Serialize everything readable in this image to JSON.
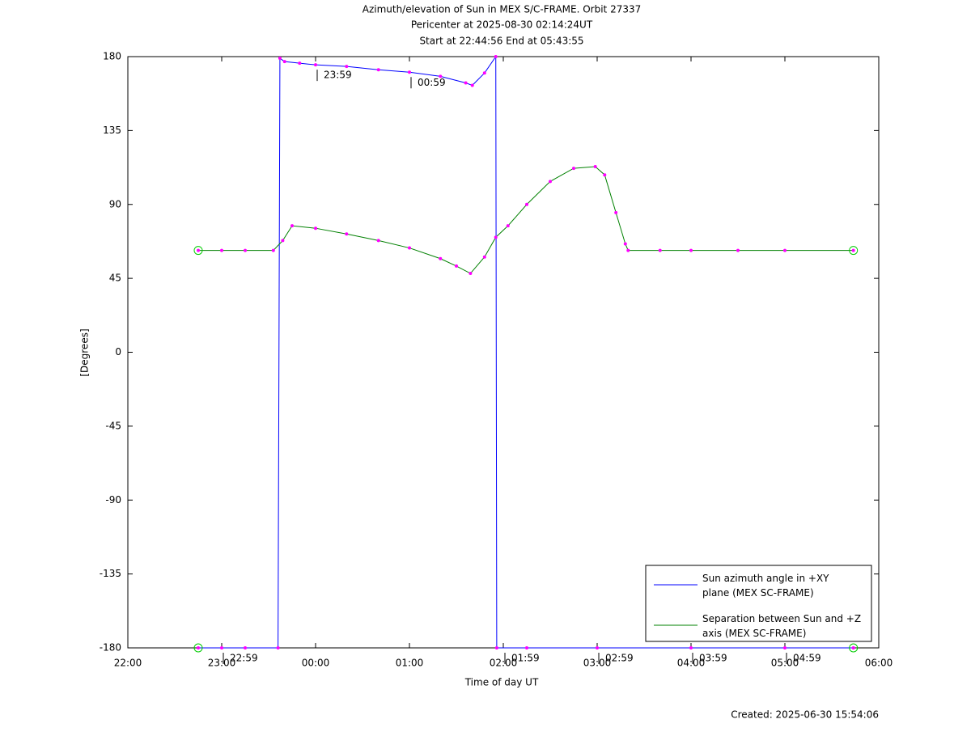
{
  "chart_data": {
    "type": "line",
    "title": "Azimuth/elevation of Sun in MEX S/C-FRAME.  Orbit 27337",
    "subtitle": [
      "Pericenter at 2025-08-30 02:14:24UT",
      "Start at 22:44:56 End at 05:43:55"
    ],
    "xlabel": "Time of day UT",
    "ylabel": "[Degrees]",
    "footer": "Created: 2025-06-30 15:54:06",
    "xlim": [
      22,
      30
    ],
    "xticks": [
      {
        "value": 22,
        "label": "22:00"
      },
      {
        "value": 23,
        "label": "23:00"
      },
      {
        "value": 24,
        "label": "00:00"
      },
      {
        "value": 25,
        "label": "01:00"
      },
      {
        "value": 26,
        "label": "02:00"
      },
      {
        "value": 27,
        "label": "03:00"
      },
      {
        "value": 28,
        "label": "04:00"
      },
      {
        "value": 29,
        "label": "05:00"
      },
      {
        "value": 30,
        "label": "06:00"
      }
    ],
    "ylim": [
      -180,
      180
    ],
    "yticks": [
      -180,
      -135,
      -90,
      -45,
      0,
      45,
      90,
      135,
      180
    ],
    "grid": false,
    "legend": "lower right",
    "marker_color": "#ff00ff",
    "series": [
      {
        "name": "Sun azimuth angle in +XY plane (MEX SC-FRAME)",
        "color": "#0000ff",
        "x": [
          22.75,
          23.0,
          23.25,
          23.6,
          23.62,
          23.67,
          23.83,
          24.0,
          24.33,
          24.67,
          25.0,
          25.33,
          25.6,
          25.67,
          25.8,
          25.92,
          25.93,
          26.25,
          27.0,
          28.0,
          29.0,
          29.73
        ],
        "values": [
          -180,
          -180,
          -180,
          -180,
          179,
          177,
          176,
          175,
          174,
          172,
          170.5,
          168,
          164,
          162.5,
          170,
          180,
          -180,
          -180,
          -180,
          -180,
          -180,
          -180
        ]
      },
      {
        "name": "Separation between Sun and +Z axis (MEX SC-FRAME)",
        "color": "#008000",
        "x": [
          22.75,
          23.0,
          23.25,
          23.55,
          23.65,
          23.75,
          24.0,
          24.33,
          24.67,
          25.0,
          25.33,
          25.5,
          25.65,
          25.8,
          25.92,
          26.05,
          26.25,
          26.5,
          26.75,
          26.98,
          27.08,
          27.2,
          27.3,
          27.33,
          27.67,
          28.0,
          28.5,
          29.0,
          29.73
        ],
        "values": [
          62,
          62,
          62,
          62,
          68,
          77,
          75.5,
          72,
          68,
          63.5,
          57,
          52.5,
          48,
          58,
          70,
          77,
          90,
          104,
          112,
          113,
          108,
          85,
          66,
          62,
          62,
          62,
          62,
          62,
          62
        ]
      }
    ],
    "annotations": [
      {
        "text": "22:59",
        "x": 23.0,
        "y": -180
      },
      {
        "text": "23:59",
        "x": 24.0,
        "y": 175
      },
      {
        "text": "00:59",
        "x": 25.0,
        "y": 170.5
      },
      {
        "text": "01:59",
        "x": 26.0,
        "y": -180
      },
      {
        "text": "02:59",
        "x": 27.0,
        "y": -180
      },
      {
        "text": "03:59",
        "x": 28.0,
        "y": -180
      },
      {
        "text": "04:59",
        "x": 29.0,
        "y": -180
      }
    ]
  }
}
